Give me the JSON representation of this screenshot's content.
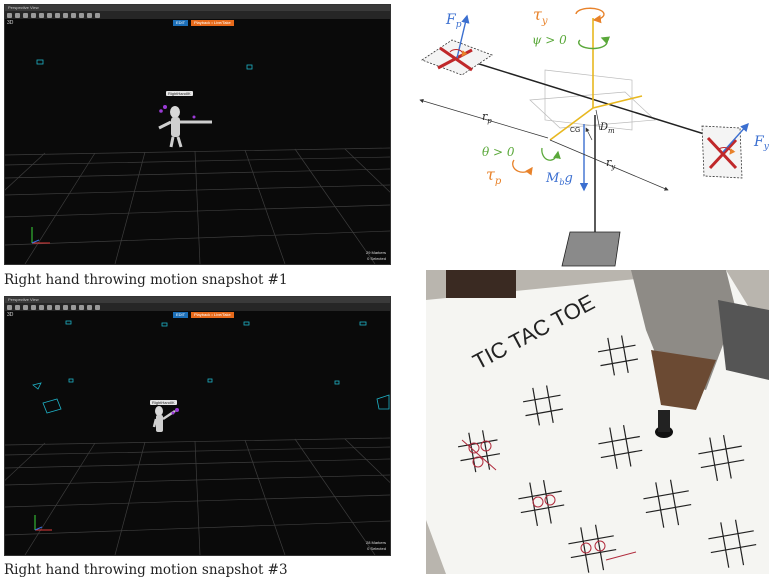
{
  "snapshot1": {
    "window_title": "Perspective View",
    "view_mode": "3D",
    "mode_left": "EDIT",
    "mode_right": "Playback • Live/Take",
    "actor_label": "RightHandIK",
    "markers_count": "29 Markers",
    "selected_count": "0 Selected",
    "caption": "Right hand throwing motion snapshot #1"
  },
  "snapshot3": {
    "window_title": "Perspective View",
    "view_mode": "3D",
    "mode_left": "EDIT",
    "mode_right": "Playback • Live/Take",
    "actor_label": "RightHandIK",
    "markers_count": "28 Markers",
    "selected_count": "0 Selected",
    "caption": "Right hand throwing motion snapshot #3"
  },
  "diagram": {
    "labels": {
      "fp": "F",
      "fp_sub": "p",
      "fy": "F",
      "fy_sub": "y",
      "tau_y": "τ",
      "tau_y_sub": "y",
      "psi": "ψ > 0",
      "theta": "θ > 0",
      "tau_p": "τ",
      "tau_p_sub": "p",
      "r_p": "r",
      "r_p_sub": "p",
      "r_y": "r",
      "r_y_sub": "y",
      "d_m": "D",
      "d_m_sub": "m",
      "cg": "CG",
      "mbg": "M",
      "mbg_sub": "b",
      "mbg_tail": "g"
    },
    "colors": {
      "force": "#3b6fd0",
      "torque": "#e8822a",
      "angle": "#5aa83a",
      "rotor": "#c0282a",
      "boom": "#e8b820"
    }
  },
  "photo": {
    "heading": "TIC TAC TOE"
  }
}
